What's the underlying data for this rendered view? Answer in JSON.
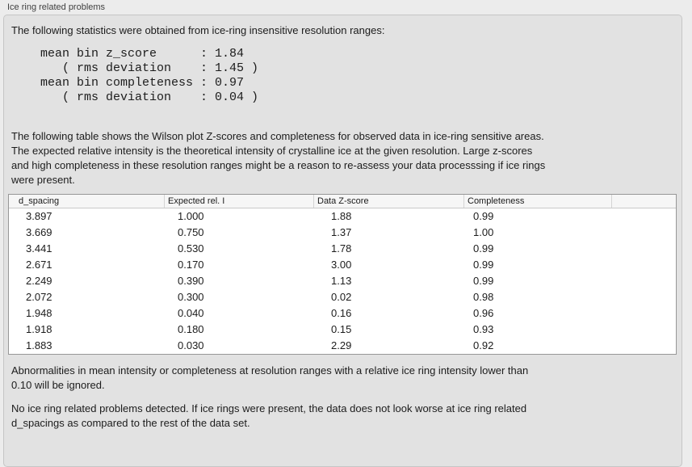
{
  "panel": {
    "title": "Ice ring related problems",
    "stats_intro": "The following statistics were obtained from ice-ring insensitive resolution ranges:",
    "stats": {
      "mean_bin_z_score": "1.84",
      "z_score_rms_deviation": "1.45",
      "mean_bin_completeness": "0.97",
      "completeness_rms_deviation": "0.04"
    },
    "stats_block": "mean bin z_score      : 1.84\n   ( rms deviation    : 1.45 )\nmean bin completeness : 0.97\n   ( rms deviation    : 0.04 )",
    "table_description": "The following table shows the Wilson plot Z-scores and completeness for observed data in ice-ring sensitive areas.\nThe expected relative intensity is the theoretical intensity of crystalline ice at the given resolution. Large z-scores\nand high completeness in these resolution ranges might be a reason to re-assess your data processsing if ice rings\nwere present.",
    "ignore_note": "Abnormalities in mean intensity or completeness at resolution ranges with a relative ice ring intensity lower than\n0.10 will be ignored.",
    "conclusion": "No ice ring related problems detected. If ice rings were present, the data does not look worse at ice ring related\nd_spacings as compared to the rest of the data set."
  },
  "table": {
    "headers": [
      "d_spacing",
      "Expected rel. I",
      "Data Z-score",
      "Completeness",
      ""
    ],
    "rows": [
      [
        "3.897",
        "1.000",
        "1.88",
        "0.99"
      ],
      [
        "3.669",
        "0.750",
        "1.37",
        "1.00"
      ],
      [
        "3.441",
        "0.530",
        "1.78",
        "0.99"
      ],
      [
        "2.671",
        "0.170",
        "3.00",
        "0.99"
      ],
      [
        "2.249",
        "0.390",
        "1.13",
        "0.99"
      ],
      [
        "2.072",
        "0.300",
        "0.02",
        "0.98"
      ],
      [
        "1.948",
        "0.040",
        "0.16",
        "0.96"
      ],
      [
        "1.918",
        "0.180",
        "0.15",
        "0.93"
      ],
      [
        "1.883",
        "0.030",
        "2.29",
        "0.92"
      ]
    ]
  },
  "colors": {
    "window_bg": "#ececec",
    "panel_bg": "#e2e2e2",
    "table_header_bg": "#f6f6f6",
    "table_border": "#979797"
  }
}
